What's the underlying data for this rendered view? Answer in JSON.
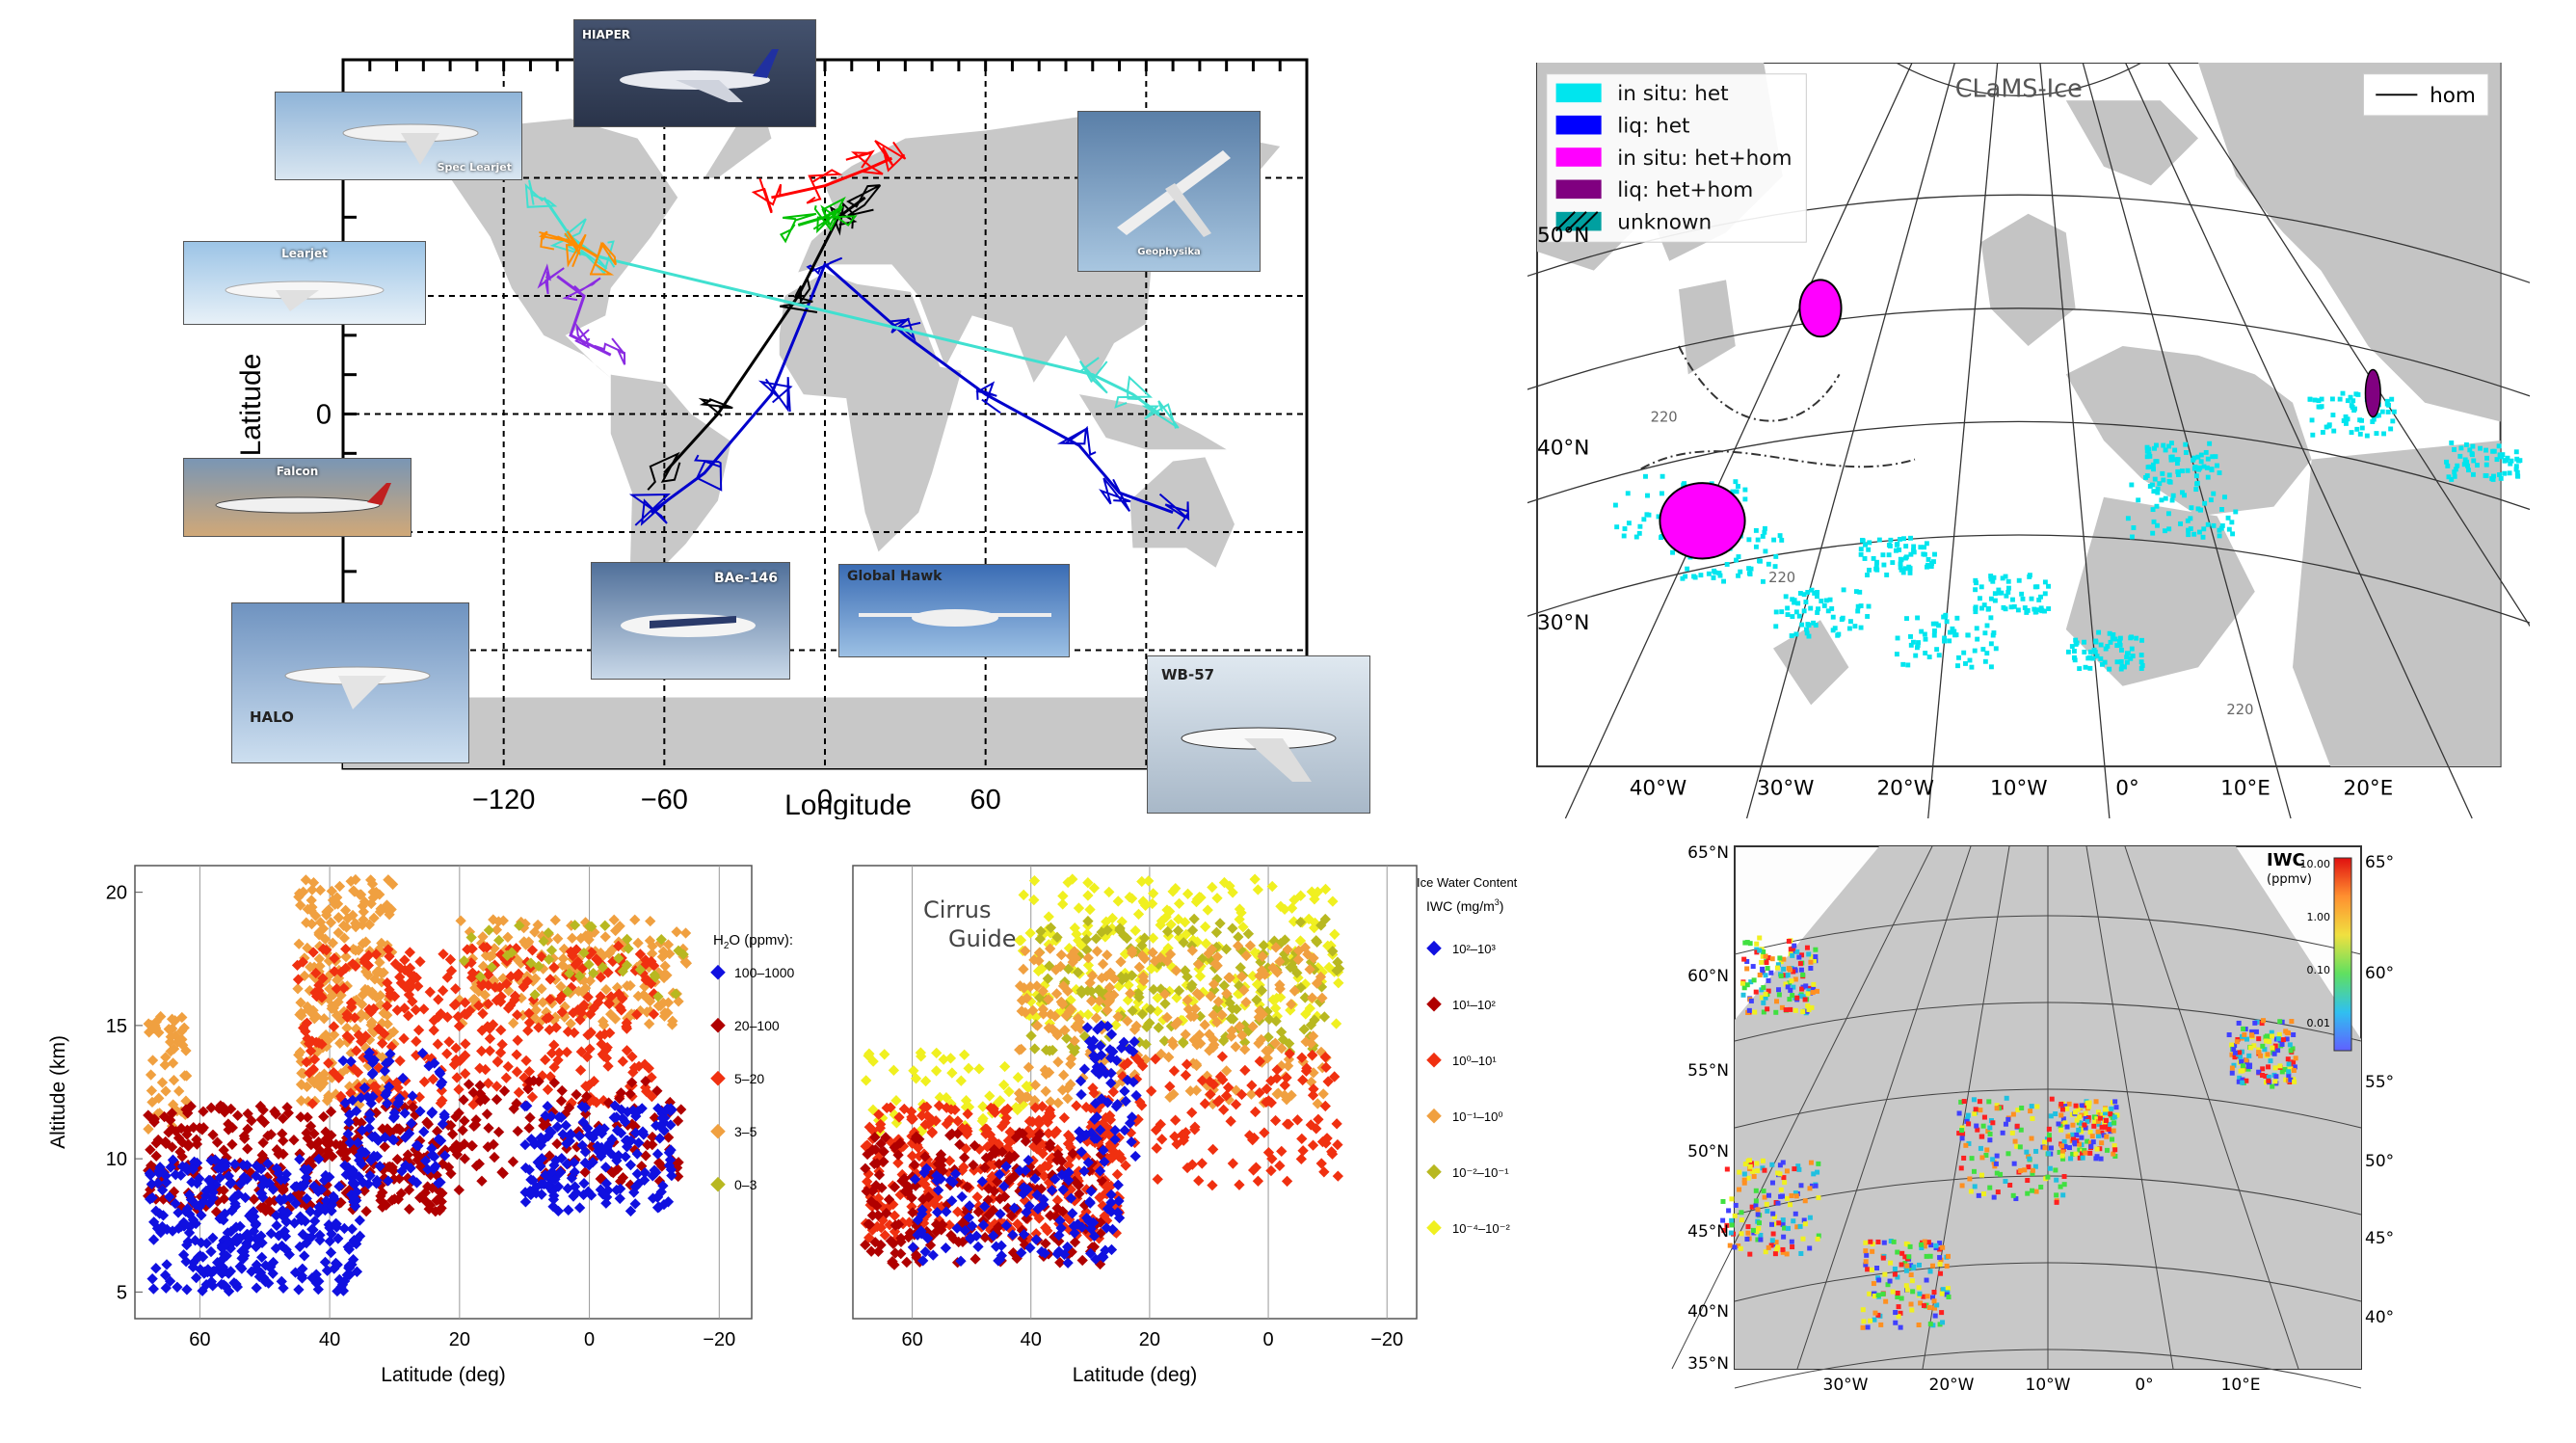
{
  "chart_data": [
    {
      "type": "scatter",
      "title": "",
      "xlabel": "Longitude",
      "ylabel": "Latitude",
      "xticks": [
        "−120",
        "−60",
        "0",
        "60"
      ],
      "yticks": [
        "0"
      ],
      "xlim": [
        -180,
        180
      ],
      "ylim": [
        -90,
        90
      ],
      "grid": true,
      "aircraft": [
        "HIAPER",
        "Spec Learjet",
        "Learjet",
        "Falcon",
        "Geophysika",
        "BAe-146",
        "Global Hawk",
        "HALO",
        "WB-57"
      ],
      "series": [
        {
          "color": "#0000cc",
          "x": [
            -65,
            -45,
            -20,
            0,
            30,
            60,
            95,
            110,
            130
          ],
          "y": [
            -25,
            -15,
            5,
            38,
            20,
            5,
            -8,
            -20,
            -25
          ]
        },
        {
          "color": "#000000",
          "x": [
            -60,
            -40,
            -10,
            5,
            15
          ],
          "y": [
            -15,
            0,
            30,
            50,
            55
          ]
        },
        {
          "color": "#ff0000",
          "x": [
            -20,
            0,
            15,
            25
          ],
          "y": [
            55,
            58,
            62,
            65
          ]
        },
        {
          "color": "#40e0d0",
          "x": [
            -105,
            -95,
            -85,
            100,
            115,
            125
          ],
          "y": [
            55,
            45,
            40,
            10,
            5,
            0
          ]
        },
        {
          "color": "#8a2be2",
          "x": [
            -100,
            -90,
            -95,
            -80
          ],
          "y": [
            35,
            30,
            20,
            15
          ]
        },
        {
          "color": "#ff8c00",
          "x": [
            -100,
            -90,
            -85
          ],
          "y": [
            45,
            42,
            40
          ]
        },
        {
          "color": "#00c000",
          "x": [
            -10,
            0,
            5
          ],
          "y": [
            48,
            50,
            52
          ]
        }
      ]
    },
    {
      "type": "heatmap",
      "title": "CLaMS-Ice",
      "legend": [
        "in situ: het",
        "liq: het",
        "in situ: het+hom",
        "liq: het+hom",
        "unknown",
        "hom"
      ],
      "legend_colors": [
        "#00e5ee",
        "#0000ff",
        "#ff00ff",
        "#800080",
        "#00a0a0",
        "#000000"
      ],
      "lat_labels": [
        "50°N",
        "40°N",
        "30°N"
      ],
      "lon_labels": [
        "40°W",
        "30°W",
        "20°W",
        "10°W",
        "0°",
        "10°E",
        "20°E"
      ],
      "contour_labels": [
        "220",
        "220",
        "220",
        "220"
      ]
    },
    {
      "type": "scatter",
      "title": "",
      "xlabel": "Latitude (deg)",
      "ylabel": "Altitude (km)",
      "xlim": [
        70,
        -25
      ],
      "ylim": [
        4,
        21
      ],
      "xticks": [
        "60",
        "40",
        "20",
        "0",
        "−20"
      ],
      "yticks": [
        "20",
        "15",
        "10",
        "5"
      ],
      "legend_title": "H2O (ppmv):",
      "legend_title_main": "H",
      "legend_title_sub": "2",
      "legend_title_rest": "O (ppmv):",
      "series": [
        {
          "name": "100–1000",
          "color": "#1010e0"
        },
        {
          "name": "20–100",
          "color": "#b00000"
        },
        {
          "name": "5–20",
          "color": "#f03010"
        },
        {
          "name": "3–5",
          "color": "#f0a040"
        },
        {
          "name": "0–3",
          "color": "#b8b820"
        }
      ]
    },
    {
      "type": "scatter",
      "title": "Cirrus Guide",
      "title_line1": "Cirrus",
      "title_line2": "Guide",
      "xlabel": "Latitude (deg)",
      "ylabel": "",
      "xlim": [
        70,
        -25
      ],
      "ylim": [
        4,
        21
      ],
      "xticks": [
        "60",
        "40",
        "20",
        "0",
        "−20"
      ],
      "legend_heading": "Ice Water Content",
      "legend_title": "IWC (mg/m3)",
      "legend_title_main": "IWC (mg/m",
      "legend_title_sup": "3",
      "legend_title_end": ")",
      "series": [
        {
          "name": "10²–10³",
          "color": "#1010e0"
        },
        {
          "name": "10¹–10²",
          "color": "#b00000"
        },
        {
          "name": "10⁰–10¹",
          "color": "#f03010"
        },
        {
          "name": "10⁻¹–10⁰",
          "color": "#f0a040"
        },
        {
          "name": "10⁻²–10⁻¹",
          "color": "#b8b820"
        },
        {
          "name": "10⁻⁴–10⁻²",
          "color": "#f0f020"
        }
      ]
    },
    {
      "type": "heatmap",
      "title": "IWC",
      "colorbar_label": "(ppmv)",
      "colorbar_ticks": [
        "10.00",
        "1.00",
        "0.10",
        "0.01"
      ],
      "lat_labels_left": [
        "65°N",
        "60°N",
        "55°N",
        "50°N",
        "45°N",
        "40°N",
        "35°N"
      ],
      "lat_labels_right": [
        "65°N",
        "60°N",
        "55°N",
        "50°N",
        "45°N",
        "40°N"
      ],
      "lon_labels": [
        "30°W",
        "20°W",
        "10°W",
        "0°",
        "10°E"
      ]
    }
  ]
}
